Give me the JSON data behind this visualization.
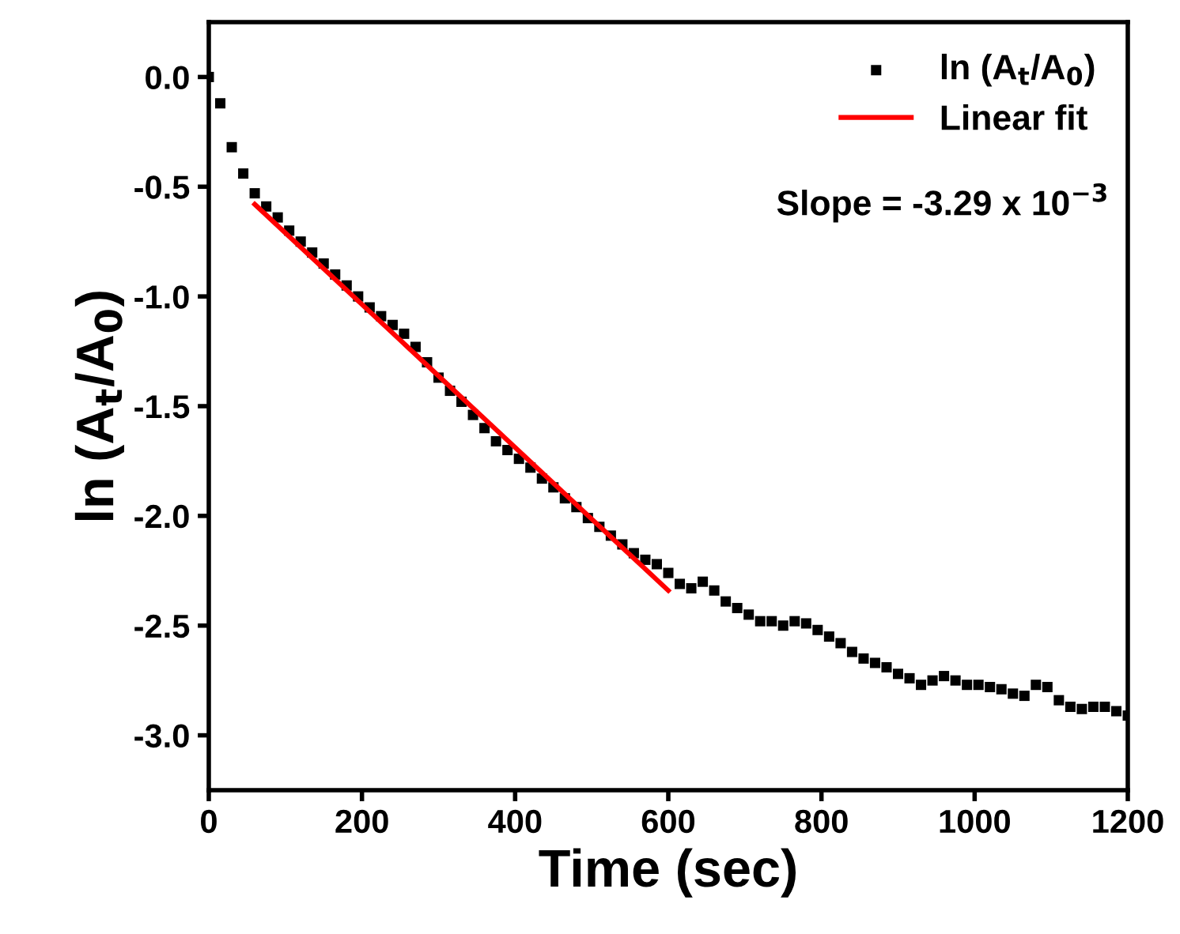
{
  "chart_data": {
    "type": "scatter",
    "xlabel": "Time (sec)",
    "ylabel": "ln (A$_{t}$/A$_{0}$)",
    "xlim": [
      0,
      1200
    ],
    "ylim": [
      -3.25,
      0.25
    ],
    "xticks": [
      0,
      200,
      400,
      600,
      800,
      1000,
      1200
    ],
    "yticks": [
      {
        "value": 0.0,
        "label": "0.0"
      },
      {
        "value": -0.5,
        "label": "-0.5"
      },
      {
        "value": -1.0,
        "label": "-1.0"
      },
      {
        "value": -1.5,
        "label": "-1.5"
      },
      {
        "value": -2.0,
        "label": "-2.0"
      },
      {
        "value": -2.5,
        "label": "-2.5"
      },
      {
        "value": -3.0,
        "label": "-3.0"
      }
    ],
    "grid": false,
    "legend": "top right",
    "annotations": [
      "Slope = -3.29 x 10$^{−3}$"
    ],
    "series": [
      {
        "name": "ln (A$_{t}$/A$_{0}$)",
        "marker": "square",
        "color": "#000000",
        "x": [
          0,
          15,
          30,
          45,
          60,
          75,
          90,
          105,
          120,
          135,
          150,
          165,
          180,
          195,
          210,
          225,
          240,
          255,
          270,
          285,
          300,
          315,
          330,
          345,
          360,
          375,
          390,
          405,
          420,
          435,
          450,
          465,
          480,
          495,
          510,
          525,
          540,
          555,
          570,
          585,
          600,
          615,
          630,
          645,
          660,
          675,
          690,
          705,
          720,
          735,
          750,
          765,
          780,
          795,
          810,
          825,
          840,
          855,
          870,
          885,
          900,
          915,
          930,
          945,
          960,
          975,
          990,
          1005,
          1020,
          1035,
          1050,
          1065,
          1080,
          1095,
          1110,
          1125,
          1140,
          1155,
          1170,
          1185,
          1200
        ],
        "values": [
          0.0,
          -0.12,
          -0.32,
          -0.44,
          -0.53,
          -0.59,
          -0.64,
          -0.7,
          -0.75,
          -0.8,
          -0.85,
          -0.9,
          -0.95,
          -1.0,
          -1.05,
          -1.09,
          -1.13,
          -1.17,
          -1.23,
          -1.3,
          -1.37,
          -1.43,
          -1.48,
          -1.54,
          -1.6,
          -1.66,
          -1.7,
          -1.74,
          -1.78,
          -1.83,
          -1.87,
          -1.92,
          -1.96,
          -2.01,
          -2.05,
          -2.09,
          -2.13,
          -2.17,
          -2.2,
          -2.22,
          -2.26,
          -2.31,
          -2.33,
          -2.3,
          -2.34,
          -2.39,
          -2.42,
          -2.45,
          -2.48,
          -2.48,
          -2.5,
          -2.48,
          -2.49,
          -2.52,
          -2.55,
          -2.58,
          -2.62,
          -2.65,
          -2.67,
          -2.69,
          -2.72,
          -2.74,
          -2.77,
          -2.75,
          -2.73,
          -2.75,
          -2.77,
          -2.77,
          -2.78,
          -2.79,
          -2.81,
          -2.82,
          -2.77,
          -2.78,
          -2.84,
          -2.87,
          -2.88,
          -2.87,
          -2.87,
          -2.89,
          -2.91
        ]
      },
      {
        "name": "Linear fit",
        "type": "line",
        "line_style": "solid",
        "color": "#ff0000",
        "x": [
          60,
          600
        ],
        "values": [
          -0.58,
          -2.34
        ]
      }
    ]
  }
}
